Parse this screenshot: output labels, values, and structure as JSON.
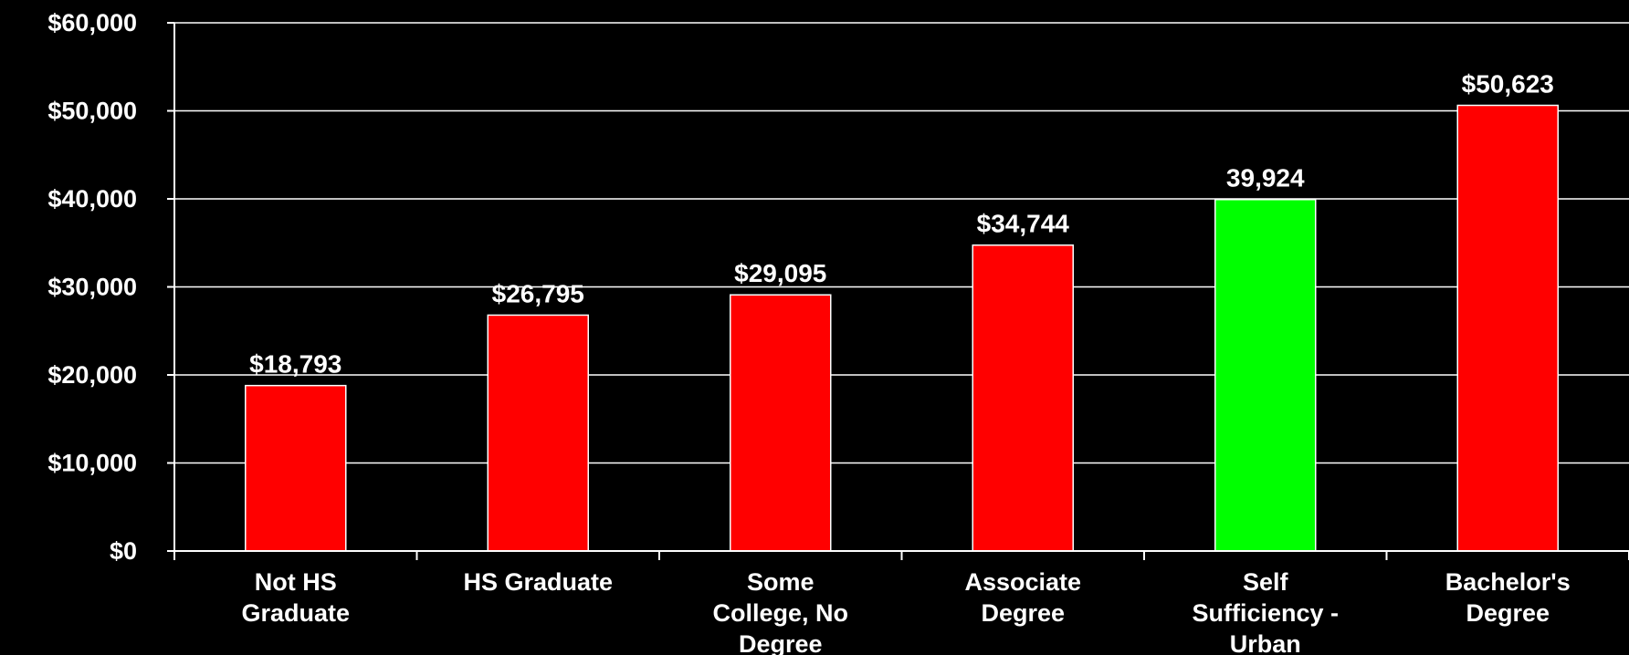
{
  "chart_data": {
    "type": "bar",
    "title": "",
    "xlabel": "",
    "ylabel": "",
    "ylim": [
      0,
      60000
    ],
    "grid": true,
    "yticks": [
      {
        "value": 0,
        "label": "$0"
      },
      {
        "value": 10000,
        "label": "$10,000"
      },
      {
        "value": 20000,
        "label": "$20,000"
      },
      {
        "value": 30000,
        "label": "$30,000"
      },
      {
        "value": 40000,
        "label": "$40,000"
      },
      {
        "value": 50000,
        "label": "$50,000"
      },
      {
        "value": 60000,
        "label": "$60,000"
      }
    ],
    "categories": [
      [
        "Not HS",
        "Graduate"
      ],
      [
        "HS Graduate"
      ],
      [
        "Some",
        "College, No",
        "Degree"
      ],
      [
        "Associate",
        "Degree"
      ],
      [
        "Self",
        "Sufficiency -",
        "Urban"
      ],
      [
        "Bachelor's",
        "Degree"
      ]
    ],
    "values": [
      18793,
      26795,
      29095,
      34744,
      39924,
      50623
    ],
    "data_labels": [
      "$18,793",
      "$26,795",
      "$29,095",
      "$34,744",
      "39,924",
      "$50,623"
    ],
    "bar_colors": [
      "#ff0000",
      "#ff0000",
      "#ff0000",
      "#ff0000",
      "#00ff00",
      "#ff0000"
    ],
    "colors": {
      "background": "#000000",
      "axis": "#ffffff",
      "grid": "#ffffff",
      "text": "#ffffff",
      "bar_default": "#ff0000",
      "bar_highlight": "#00ff00"
    }
  }
}
